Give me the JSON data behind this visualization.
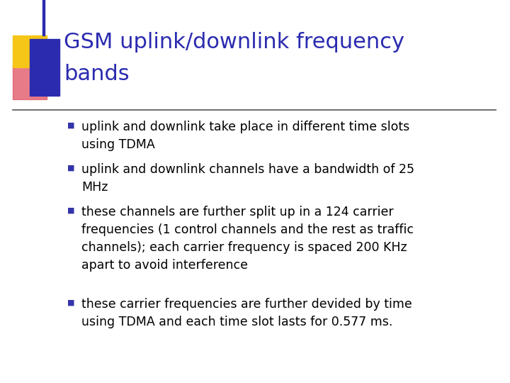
{
  "title_line1": "GSM uplink/downlink frequency",
  "title_line2": "bands",
  "title_color": "#2B2BB0",
  "bg_color": "#FFFFFF",
  "bullet_color": "#3333AA",
  "text_color": "#000000",
  "bullet_char": "■",
  "bullets": [
    "uplink and downlink take place in different time slots\nusing TDMA",
    "uplink and downlink channels have a bandwidth of 25\nMHz",
    "these channels are further split up in a 124 carrier\nfrequencies (1 control channels and the rest as traffic\nchannels); each carrier frequency is spaced 200 KHz\napart to avoid interference",
    "these carrier frequencies are further devided by time\nusing TDMA and each time slot lasts for 0.577 ms."
  ],
  "logo_yellow": "#F5C518",
  "logo_red": "#E05060",
  "logo_blue": "#2B2BB0",
  "separator_color": "#555555",
  "title_font_size": 22,
  "bullet_font_size": 12.5,
  "fig_width": 7.2,
  "fig_height": 5.4,
  "dpi": 100
}
